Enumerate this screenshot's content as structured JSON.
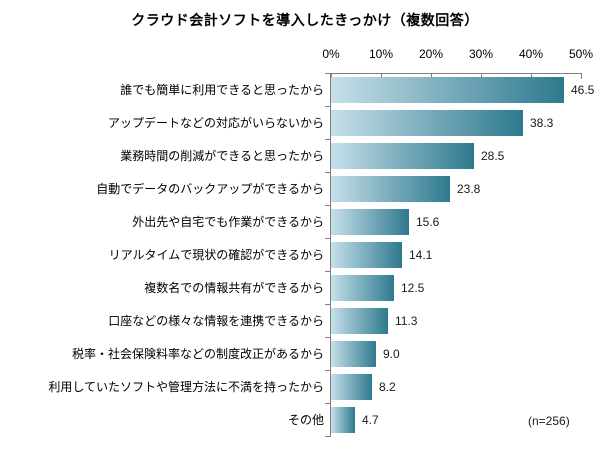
{
  "chart_data": {
    "type": "bar",
    "orientation": "horizontal",
    "title": "クラウド会計ソフトを導入したきっかけ（複数回答）",
    "categories": [
      "誰でも簡単に利用できると思ったから",
      "アップデートなどの対応がいらないから",
      "業務時間の削減ができると思ったから",
      "自動でデータのバックアップができるから",
      "外出先や自宅でも作業ができるから",
      "リアルタイムで現状の確認ができるから",
      "複数名での情報共有ができるから",
      "口座などの様々な情報を連携できるから",
      "税率・社会保険料率などの制度改正があるから",
      "利用していたソフトや管理方法に不満を持ったから",
      "その他"
    ],
    "values": [
      46.5,
      38.3,
      28.5,
      23.8,
      15.6,
      14.1,
      12.5,
      11.3,
      9.0,
      8.2,
      4.7
    ],
    "value_labels": [
      "46.5",
      "38.3",
      "28.5",
      "23.8",
      "15.6",
      "14.1",
      "12.5",
      "11.3",
      "9.0",
      "8.2",
      "4.7"
    ],
    "xlabel": "",
    "ylabel": "",
    "xlim": [
      0,
      50
    ],
    "x_tick_labels": [
      "0%",
      "10%",
      "20%",
      "30%",
      "40%",
      "50%"
    ],
    "annotation": "(n=256)",
    "grid": false,
    "legend": false,
    "colors": {
      "bar_gradient_start": "#c6e0ea",
      "bar_gradient_end": "#2e798e",
      "axis": "#808080",
      "text": "#000000"
    }
  }
}
